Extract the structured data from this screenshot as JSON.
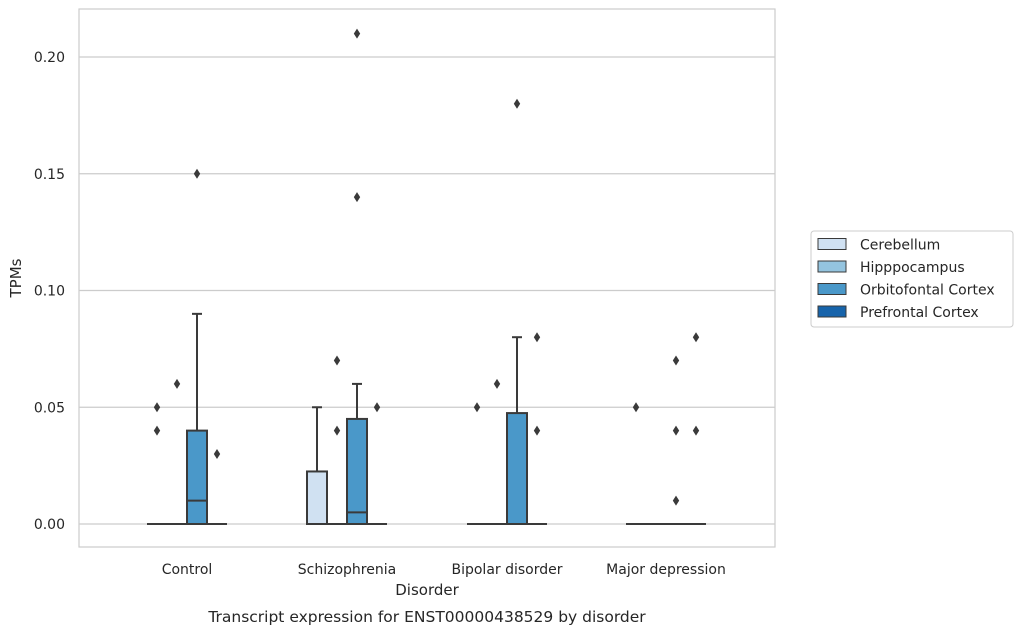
{
  "chart_data": {
    "type": "box",
    "xlabel": "Disorder",
    "ylabel": "TPMs",
    "caption": "Transcript expression for ENST00000438529 by disorder",
    "ylim": [
      -0.01,
      0.22
    ],
    "yticks": [
      0.0,
      0.05,
      0.1,
      0.15,
      0.2
    ],
    "ytick_labels": [
      "0.00",
      "0.05",
      "0.10",
      "0.15",
      "0.20"
    ],
    "grid": "horizontal",
    "legend_position": "right",
    "categories": [
      "Control",
      "Schizophrenia",
      "Bipolar disorder",
      "Major depression"
    ],
    "series": [
      {
        "name": "Cerebellum",
        "color": "#d0e1f2",
        "boxes": [
          {
            "q1": 0,
            "median": 0,
            "q3": 0,
            "whisker_low": 0,
            "whisker_high": 0,
            "outliers": [
              0.04,
              0.05
            ]
          },
          {
            "q1": 0,
            "median": 0,
            "q3": 0.0225,
            "whisker_low": 0,
            "whisker_high": 0.05,
            "outliers": []
          },
          {
            "q1": 0,
            "median": 0,
            "q3": 0,
            "whisker_low": 0,
            "whisker_high": 0,
            "outliers": [
              0.05
            ]
          },
          {
            "q1": 0,
            "median": 0,
            "q3": 0,
            "whisker_low": 0,
            "whisker_high": 0,
            "outliers": [
              0.05
            ]
          }
        ]
      },
      {
        "name": "Hipppocampus",
        "color": "#94c4df",
        "boxes": [
          {
            "q1": 0,
            "median": 0,
            "q3": 0,
            "whisker_low": 0,
            "whisker_high": 0,
            "outliers": [
              0.06
            ]
          },
          {
            "q1": 0,
            "median": 0,
            "q3": 0,
            "whisker_low": 0,
            "whisker_high": 0,
            "outliers": [
              0.04,
              0.07
            ]
          },
          {
            "q1": 0,
            "median": 0,
            "q3": 0,
            "whisker_low": 0,
            "whisker_high": 0,
            "outliers": [
              0.06
            ]
          },
          {
            "q1": 0,
            "median": 0,
            "q3": 0,
            "whisker_low": 0,
            "whisker_high": 0,
            "outliers": []
          }
        ]
      },
      {
        "name": "Orbitofontal Cortex",
        "color": "#4a98c9",
        "boxes": [
          {
            "q1": 0,
            "median": 0.01,
            "q3": 0.04,
            "whisker_low": 0,
            "whisker_high": 0.09,
            "outliers": [
              0.15
            ]
          },
          {
            "q1": 0,
            "median": 0.005,
            "q3": 0.045,
            "whisker_low": 0,
            "whisker_high": 0.06,
            "outliers": [
              0.14,
              0.21
            ]
          },
          {
            "q1": 0,
            "median": 0,
            "q3": 0.0475,
            "whisker_low": 0,
            "whisker_high": 0.08,
            "outliers": [
              0.18
            ]
          },
          {
            "q1": 0,
            "median": 0,
            "q3": 0,
            "whisker_low": 0,
            "whisker_high": 0,
            "outliers": [
              0.01,
              0.04,
              0.07
            ]
          }
        ]
      },
      {
        "name": "Prefrontal Cortex",
        "color": "#1764ab",
        "boxes": [
          {
            "q1": 0,
            "median": 0,
            "q3": 0,
            "whisker_low": 0,
            "whisker_high": 0,
            "outliers": [
              0.03
            ]
          },
          {
            "q1": 0,
            "median": 0,
            "q3": 0,
            "whisker_low": 0,
            "whisker_high": 0,
            "outliers": [
              0.05
            ]
          },
          {
            "q1": 0,
            "median": 0,
            "q3": 0,
            "whisker_low": 0,
            "whisker_high": 0,
            "outliers": [
              0.04,
              0.08
            ]
          },
          {
            "q1": 0,
            "median": 0,
            "q3": 0,
            "whisker_low": 0,
            "whisker_high": 0,
            "outliers": [
              0.04,
              0.08
            ]
          }
        ]
      }
    ]
  }
}
